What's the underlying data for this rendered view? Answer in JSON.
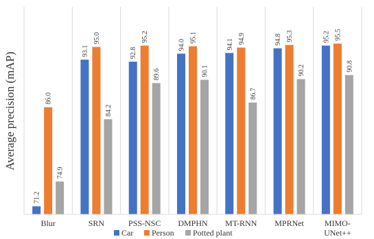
{
  "chart_data": {
    "type": "bar",
    "title": "",
    "xlabel": "",
    "ylabel": "Average precision (mAP)",
    "ylim": [
      70,
      97
    ],
    "grid": "vertical separators between groups",
    "legend_position": "bottom-center",
    "categories": [
      "Blur",
      "SRN",
      "PSS-NSC",
      "DMPHN",
      "MT-RNN",
      "MPRNet",
      "MIMO-UNet++"
    ],
    "category_lines": [
      [
        "Blur"
      ],
      [
        "SRN"
      ],
      [
        "PSS-NSC"
      ],
      [
        "DMPHN"
      ],
      [
        "MT-RNN"
      ],
      [
        "MPRNet"
      ],
      [
        "MIMO-",
        "UNet++"
      ]
    ],
    "series": [
      {
        "name": "Car",
        "color": "#4472c4",
        "values": [
          71.2,
          93.1,
          92.8,
          94.0,
          94.1,
          94.8,
          95.2
        ],
        "labels": [
          "71.2",
          "93.1",
          "92.8",
          "94.0",
          "94.1",
          "94.8",
          "95.2"
        ]
      },
      {
        "name": "Person",
        "color": "#ed7d31",
        "values": [
          86.0,
          95.0,
          95.2,
          95.1,
          94.9,
          95.3,
          95.5
        ],
        "labels": [
          "86.0",
          "95.0",
          "95.2",
          "95.1",
          "94.9",
          "95.3",
          "95.5"
        ]
      },
      {
        "name": "Potted plant",
        "color": "#a5a5a5",
        "values": [
          74.9,
          84.2,
          89.6,
          90.1,
          86.7,
          90.2,
          90.8
        ],
        "labels": [
          "74.9",
          "84.2",
          "89.6",
          "90.1",
          "86.7",
          "90.2",
          "90.8"
        ]
      }
    ]
  }
}
